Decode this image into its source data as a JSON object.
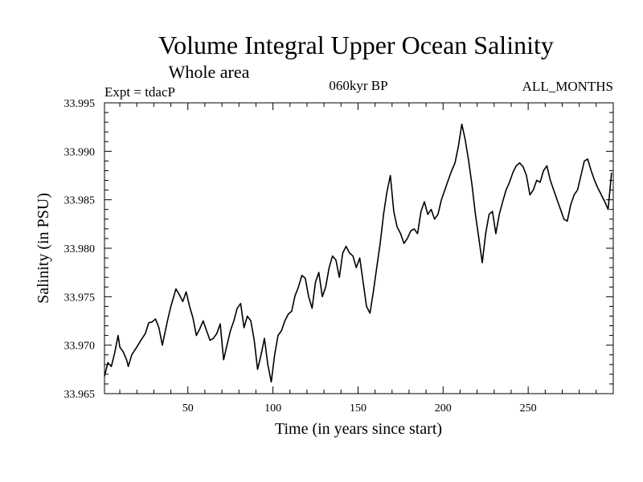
{
  "chart_data": {
    "type": "line",
    "title": "Volume Integral Upper Ocean Salinity",
    "subtitle": "Whole area",
    "experiment_label": "Expt = tdacP",
    "period_label": "060kyr BP",
    "months_label": "ALL_MONTHS",
    "xlabel": "Time (in years since start)",
    "ylabel": "Salinity (in PSU)",
    "xlim": [
      1,
      300
    ],
    "ylim": [
      33.965,
      33.995
    ],
    "x_ticks": [
      50,
      100,
      150,
      200,
      250
    ],
    "y_ticks": [
      "33.965",
      "33.970",
      "33.975",
      "33.980",
      "33.985",
      "33.990",
      "33.995"
    ],
    "grid": false,
    "series": [
      {
        "name": "Salinity",
        "x": [
          1,
          3,
          5,
          7,
          9,
          10,
          12,
          14,
          15,
          17,
          20,
          22,
          25,
          27,
          29,
          31,
          33,
          35,
          38,
          40,
          43,
          45,
          47,
          49,
          51,
          53,
          55,
          57,
          59,
          61,
          63,
          65,
          67,
          69,
          71,
          73,
          75,
          77,
          79,
          81,
          83,
          85,
          87,
          89,
          91,
          93,
          95,
          97,
          99,
          101,
          103,
          105,
          107,
          109,
          111,
          113,
          115,
          117,
          119,
          121,
          123,
          125,
          127,
          129,
          131,
          133,
          135,
          137,
          139,
          141,
          143,
          145,
          147,
          149,
          151,
          153,
          155,
          157,
          159,
          161,
          163,
          165,
          167,
          169,
          171,
          173,
          175,
          177,
          179,
          181,
          183,
          185,
          187,
          189,
          191,
          193,
          195,
          197,
          199,
          201,
          203,
          205,
          207,
          209,
          211,
          213,
          215,
          217,
          219,
          221,
          223,
          225,
          227,
          229,
          231,
          233,
          235,
          237,
          239,
          241,
          243,
          245,
          247,
          249,
          251,
          253,
          255,
          257,
          259,
          261,
          263,
          265,
          267,
          269,
          271,
          273,
          275,
          277,
          279,
          281,
          283,
          285,
          287,
          289,
          291,
          293,
          295,
          297,
          299
        ],
        "values": [
          33.9668,
          33.9682,
          33.9678,
          33.9692,
          33.971,
          33.9698,
          33.9693,
          33.9685,
          33.9678,
          33.969,
          33.9698,
          33.9704,
          33.9712,
          33.9723,
          33.9724,
          33.9727,
          33.9718,
          33.97,
          33.9725,
          33.974,
          33.9758,
          33.9752,
          33.9745,
          33.9755,
          33.974,
          33.9728,
          33.971,
          33.9717,
          33.9725,
          33.9715,
          33.9705,
          33.9707,
          33.9712,
          33.9722,
          33.9685,
          33.97,
          33.9715,
          33.9725,
          33.9738,
          33.9743,
          33.9718,
          33.973,
          33.9725,
          33.9705,
          33.9675,
          33.969,
          33.9707,
          33.968,
          33.9662,
          33.969,
          33.971,
          33.9715,
          33.9725,
          33.9732,
          33.9735,
          33.9751,
          33.976,
          33.9772,
          33.9769,
          33.975,
          33.9738,
          33.9765,
          33.9775,
          33.975,
          33.976,
          33.978,
          33.9792,
          33.9788,
          33.977,
          33.9795,
          33.9802,
          33.9795,
          33.9792,
          33.978,
          33.979,
          33.9765,
          33.974,
          33.9733,
          33.9755,
          33.978,
          33.9805,
          33.9835,
          33.9858,
          33.9875,
          33.9838,
          33.9822,
          33.9815,
          33.9805,
          33.981,
          33.9818,
          33.982,
          33.9815,
          33.9838,
          33.9848,
          33.9835,
          33.984,
          33.983,
          33.9835,
          33.985,
          33.986,
          33.987,
          33.988,
          33.9888,
          33.9905,
          33.9928,
          33.9912,
          33.989,
          33.9865,
          33.9835,
          33.981,
          33.9785,
          33.9815,
          33.9835,
          33.9838,
          33.9815,
          33.9835,
          33.9848,
          33.986,
          33.9868,
          33.9878,
          33.9885,
          33.9888,
          33.9884,
          33.9875,
          33.9855,
          33.986,
          33.987,
          33.9868,
          33.988,
          33.9885,
          33.987,
          33.986,
          33.985,
          33.984,
          33.983,
          33.9828,
          33.9845,
          33.9855,
          33.986,
          33.9875,
          33.989,
          33.9892,
          33.988,
          33.987,
          33.9862,
          33.9855,
          33.9848,
          33.984,
          33.9878
        ]
      }
    ]
  }
}
